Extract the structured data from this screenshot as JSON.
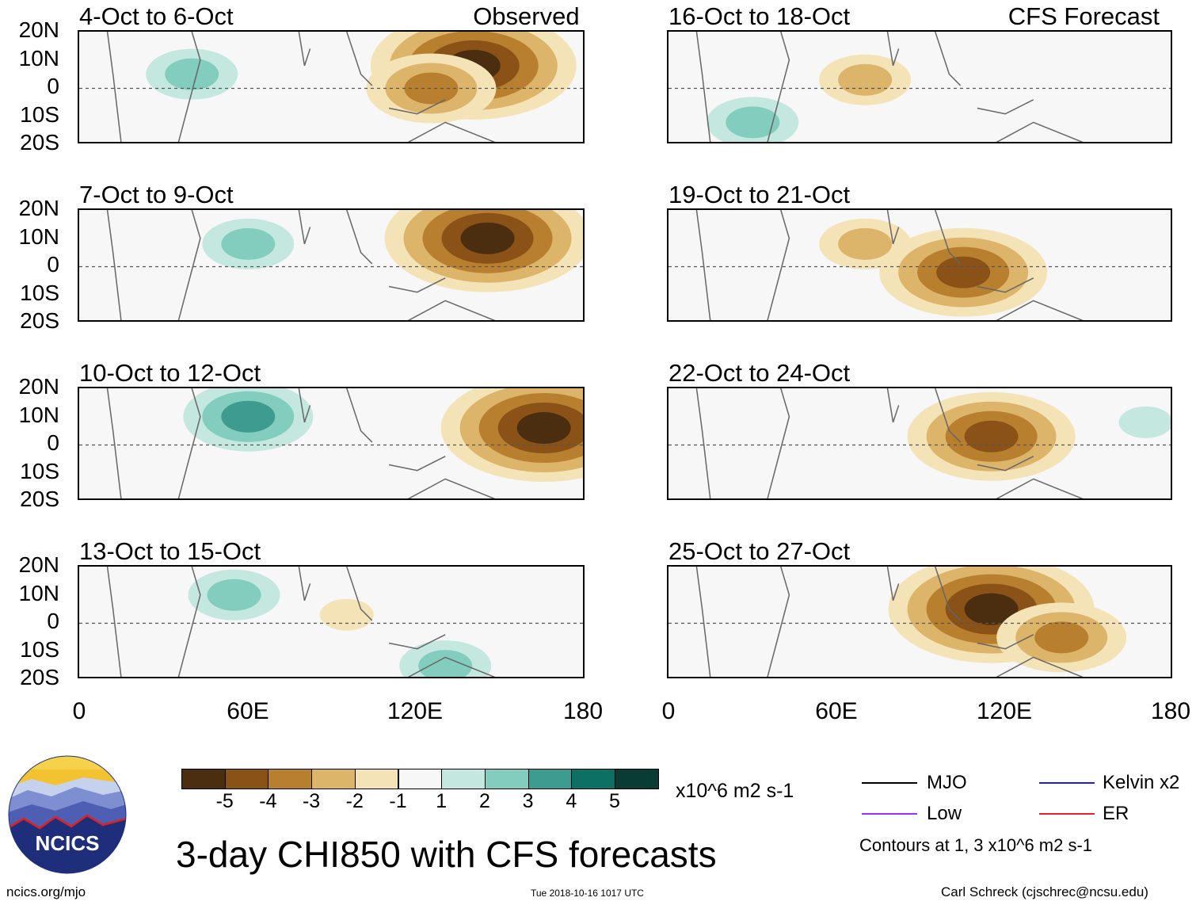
{
  "chart_data": [
    {
      "type": "heatmap",
      "panel": "left-1",
      "title": "4-Oct to 6-Oct",
      "tag": "Observed",
      "xlim": [
        0,
        180
      ],
      "ylim": [
        -20,
        20
      ],
      "features": [
        {
          "type": "dry",
          "lon": 140,
          "lat": 8,
          "strength": -5
        },
        {
          "type": "dry",
          "lon": 125,
          "lat": 0,
          "strength": -3
        },
        {
          "type": "wet",
          "lon": 40,
          "lat": 5,
          "strength": 2
        }
      ]
    },
    {
      "type": "heatmap",
      "panel": "right-1",
      "title": "16-Oct to 18-Oct",
      "tag": "CFS Forecast",
      "xlim": [
        0,
        180
      ],
      "ylim": [
        -20,
        20
      ],
      "features": [
        {
          "type": "dry",
          "lon": 70,
          "lat": 3,
          "strength": -2
        },
        {
          "type": "wet",
          "lon": 30,
          "lat": -12,
          "strength": 2
        }
      ]
    },
    {
      "type": "heatmap",
      "panel": "left-2",
      "title": "7-Oct to 9-Oct",
      "xlim": [
        0,
        180
      ],
      "ylim": [
        -20,
        20
      ],
      "features": [
        {
          "type": "dry",
          "lon": 145,
          "lat": 10,
          "strength": -5
        },
        {
          "type": "wet",
          "lon": 60,
          "lat": 8,
          "strength": 2
        }
      ]
    },
    {
      "type": "heatmap",
      "panel": "right-2",
      "title": "19-Oct to 21-Oct",
      "xlim": [
        0,
        180
      ],
      "ylim": [
        -20,
        20
      ],
      "features": [
        {
          "type": "dry",
          "lon": 105,
          "lat": -2,
          "strength": -4
        },
        {
          "type": "dry",
          "lon": 70,
          "lat": 8,
          "strength": -2
        }
      ]
    },
    {
      "type": "heatmap",
      "panel": "left-3",
      "title": "10-Oct to 12-Oct",
      "xlim": [
        0,
        180
      ],
      "ylim": [
        -20,
        20
      ],
      "features": [
        {
          "type": "dry",
          "lon": 165,
          "lat": 6,
          "strength": -5
        },
        {
          "type": "wet",
          "lon": 60,
          "lat": 10,
          "strength": 3
        }
      ]
    },
    {
      "type": "heatmap",
      "panel": "right-3",
      "title": "22-Oct to 24-Oct",
      "xlim": [
        0,
        180
      ],
      "ylim": [
        -20,
        20
      ],
      "features": [
        {
          "type": "dry",
          "lon": 115,
          "lat": 3,
          "strength": -4
        },
        {
          "type": "wet",
          "lon": 170,
          "lat": 8,
          "strength": 1
        }
      ]
    },
    {
      "type": "heatmap",
      "panel": "left-4",
      "title": "13-Oct to 15-Oct",
      "xlim": [
        0,
        180
      ],
      "ylim": [
        -20,
        20
      ],
      "features": [
        {
          "type": "wet",
          "lon": 55,
          "lat": 10,
          "strength": 2
        },
        {
          "type": "wet",
          "lon": 130,
          "lat": -15,
          "strength": 2
        },
        {
          "type": "dry",
          "lon": 95,
          "lat": 3,
          "strength": -1
        }
      ]
    },
    {
      "type": "heatmap",
      "panel": "right-4",
      "title": "25-Oct to 27-Oct",
      "xlim": [
        0,
        180
      ],
      "ylim": [
        -20,
        20
      ],
      "features": [
        {
          "type": "dry",
          "lon": 115,
          "lat": 5,
          "strength": -5
        },
        {
          "type": "dry",
          "lon": 140,
          "lat": -5,
          "strength": -3
        }
      ]
    }
  ],
  "axes": {
    "y_ticks": [
      "20N",
      "10N",
      "0",
      "10S",
      "20S"
    ],
    "x_ticks": [
      "0",
      "60E",
      "120E",
      "180"
    ]
  },
  "colorbar": {
    "labels": [
      "-5",
      "-4",
      "-3",
      "-2",
      "-1",
      "1",
      "2",
      "3",
      "4",
      "5"
    ],
    "colors": [
      "#4a2e0f",
      "#8a5217",
      "#b8802e",
      "#dcb46a",
      "#f5e3b8",
      "#f7f7f7",
      "#c4e8df",
      "#82cdbd",
      "#3d9c8f",
      "#0c7065",
      "#083c34"
    ],
    "units": "x10^6 m2 s-1"
  },
  "legend": {
    "items": [
      {
        "label": "MJO",
        "color": "#000000"
      },
      {
        "label": "Kelvin x2",
        "color": "#1a1aff"
      },
      {
        "label": "Low",
        "color": "#9b30ff"
      },
      {
        "label": "ER",
        "color": "#e8202a"
      }
    ],
    "note": "Contours at 1, 3 x10^6 m2 s-1"
  },
  "logo": {
    "text": "NCICS"
  },
  "main_title": "3-day CHI850 with CFS forecasts",
  "footer": {
    "left": "ncics.org/mjo",
    "center": "Tue 2018-10-16 1017 UTC",
    "right": "Carl Schreck (cjschrec@ncsu.edu)"
  }
}
